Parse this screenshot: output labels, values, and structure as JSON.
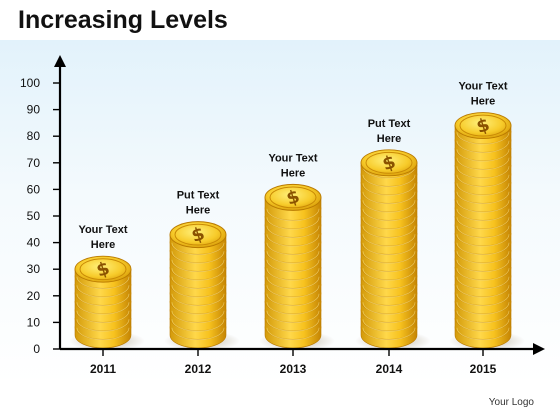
{
  "title": "Increasing Levels",
  "logo_text": "Your Logo",
  "icons": {
    "coin_symbol": "dollar-sign-icon",
    "coin_glyph": "$"
  },
  "colors": {
    "coin_light": "#ffe25c",
    "coin_mid": "#f4bf1c",
    "coin_dark": "#c98a05",
    "coin_rim": "#b97a00",
    "glyph": "#8a5200",
    "axis": "#000000",
    "background_top": "#e2f2fb"
  },
  "chart_data": {
    "type": "bar",
    "title": "Increasing Levels",
    "xlabel": "",
    "ylabel": "",
    "ylim": [
      0,
      100
    ],
    "yticks": [
      0,
      10,
      20,
      30,
      40,
      50,
      60,
      70,
      80,
      90,
      100
    ],
    "grid": false,
    "legend": "none",
    "categories": [
      "2011",
      "2012",
      "2013",
      "2014",
      "2015"
    ],
    "values": [
      30,
      43,
      57,
      70,
      84
    ],
    "bar_labels": [
      [
        "Your Text",
        "Here"
      ],
      [
        "Put Text",
        "Here"
      ],
      [
        "Your Text",
        "Here"
      ],
      [
        "Put Text",
        "Here"
      ],
      [
        "Your Text",
        "Here"
      ]
    ]
  }
}
